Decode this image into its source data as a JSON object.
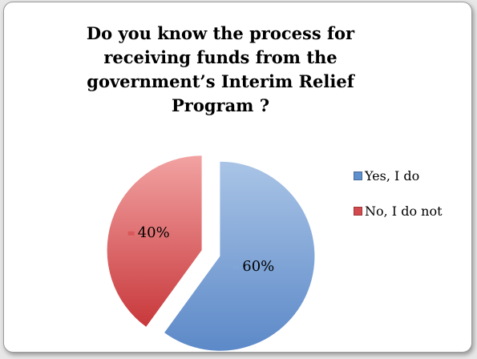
{
  "chart_data": {
    "type": "pie",
    "title": "Do you know the process for receiving funds from the government’s Interim Relief Program ?",
    "categories": [
      "Yes, I do",
      "No, I do not"
    ],
    "values": [
      60,
      40
    ],
    "data_labels": [
      "60%",
      "40%"
    ],
    "colors": [
      "#7ea6d6",
      "#d9585a"
    ],
    "exploded": true,
    "legend_position": "right"
  }
}
